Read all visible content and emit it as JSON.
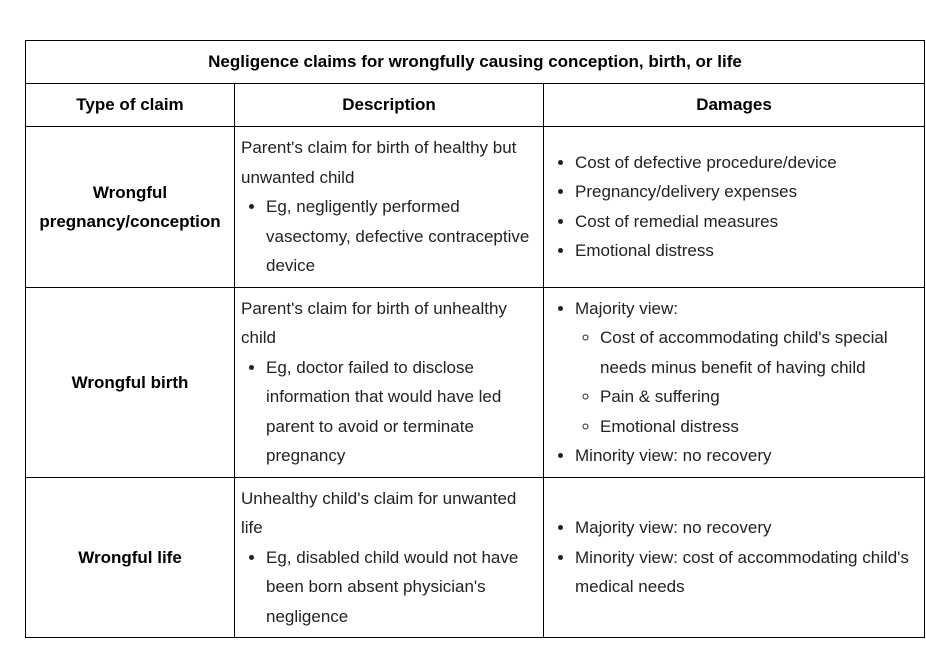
{
  "table": {
    "title": "Negligence claims for wrongfully causing conception, birth, or life",
    "headers": {
      "type": "Type of claim",
      "description": "Description",
      "damages": "Damages"
    },
    "rows": [
      {
        "type_line1": "Wrongful",
        "type_line2": "pregnancy/conception",
        "description": "Parent's claim for birth of healthy but unwanted child",
        "description_bullets": [
          "Eg, negligently performed vasectomy, defective contraceptive device"
        ],
        "damages": [
          "Cost of defective procedure/device",
          "Pregnancy/delivery expenses",
          "Cost of remedial measures",
          "Emotional distress"
        ]
      },
      {
        "type_line1": "Wrongful birth",
        "description": "Parent's claim for birth of unhealthy child",
        "description_bullets": [
          "Eg, doctor failed to disclose information that would have led parent to avoid or terminate pregnancy"
        ],
        "damages_majority": "Majority view:",
        "damages_majority_items": [
          "Cost of accommodating child's special needs minus benefit of having child",
          "Pain & suffering",
          "Emotional distress"
        ],
        "damages_minority": "Minority view:  no recovery"
      },
      {
        "type_line1": "Wrongful life",
        "description": "Unhealthy child's claim for unwanted life",
        "description_bullets": [
          "Eg, disabled child would not have been born absent physician's negligence"
        ],
        "damages": [
          "Majority view:  no recovery",
          "Minority view:  cost of accommodating child's medical needs"
        ]
      }
    ]
  }
}
